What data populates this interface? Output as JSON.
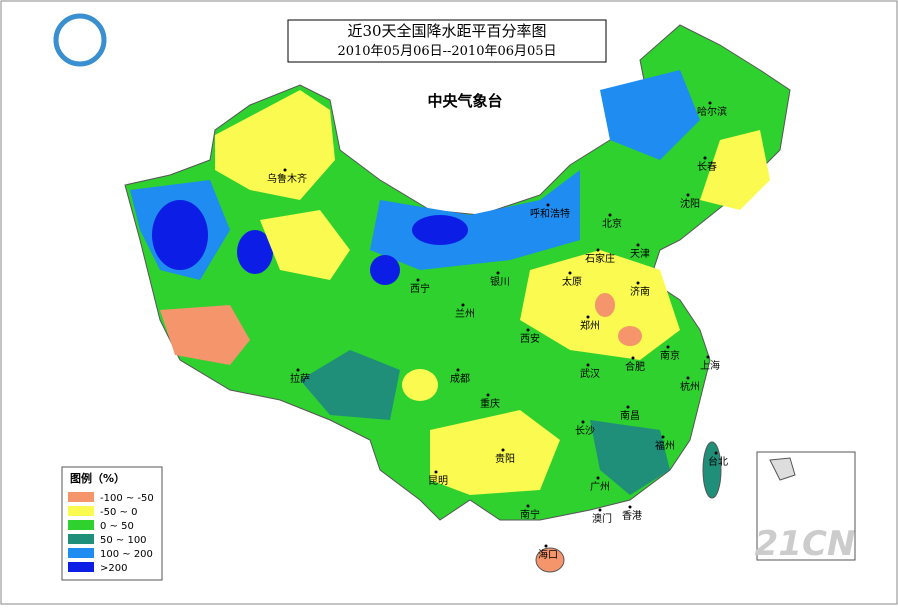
{
  "header": {
    "title": "近30天全国降水距平百分率图",
    "date_range": "2010年05月06日--2010年06月05日",
    "agency": "中央气象台"
  },
  "legend": {
    "title": "图例（%）",
    "items": [
      {
        "label": "-100 ~ -50",
        "color": "#f4956b"
      },
      {
        "label": "-50 ~ 0",
        "color": "#fafa50"
      },
      {
        "label": "0 ~ 50",
        "color": "#2ed12e"
      },
      {
        "label": "50 ~ 100",
        "color": "#1f8f7a"
      },
      {
        "label": "100 ~ 200",
        "color": "#1e8cf0"
      },
      {
        "label": ">200",
        "color": "#0c1ee6"
      }
    ]
  },
  "cities": [
    "乌鲁木齐",
    "呼和浩特",
    "北京",
    "天津",
    "石家庄",
    "太原",
    "济南",
    "郑州",
    "西宁",
    "银川",
    "兰州",
    "西安",
    "拉萨",
    "成都",
    "重庆",
    "武汉",
    "合肥",
    "南京",
    "上海",
    "杭州",
    "长沙",
    "南昌",
    "福州",
    "台北",
    "贵阳",
    "昆明",
    "南宁",
    "广州",
    "澳门",
    "香港",
    "海口",
    "哈尔滨",
    "长春",
    "沈阳"
  ],
  "watermark": "21CN"
}
